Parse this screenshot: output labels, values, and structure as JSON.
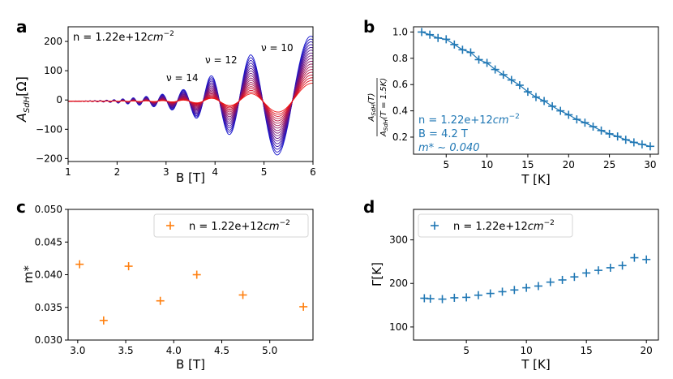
{
  "chart_data": [
    {
      "panel": "a",
      "type": "line",
      "title": "",
      "xlabel": "B [T]",
      "ylabel_main": "A",
      "ylabel_sub": "SdH",
      "ylabel_unit": "[Ω]",
      "xlim": [
        1,
        6
      ],
      "ylim": [
        -210,
        250
      ],
      "xticks": [
        "1",
        "2",
        "3",
        "4",
        "5",
        "6"
      ],
      "yticks": [
        "−200",
        "−100",
        "0",
        "100",
        "200"
      ],
      "ytick_values": [
        -200,
        -100,
        0,
        100,
        200
      ],
      "xtick_values": [
        1,
        2,
        3,
        4,
        5,
        6
      ],
      "legend_text_main": "n = 1.22e+12",
      "legend_text_unit": "cm",
      "legend_text_exp": "−2",
      "annotations": [
        {
          "text": "ν = 14",
          "x": 3.3,
          "y": 50
        },
        {
          "text": "ν = 12",
          "x": 3.8,
          "y": 95
        },
        {
          "text": "ν = 10",
          "x": 5.0,
          "y": 130
        }
      ],
      "num_curves": 18,
      "curve_color_cold": "#1414cc",
      "curve_color_hot": "#ee1111",
      "series_peaks": {
        "B": [
          1.8,
          2.1,
          2.45,
          2.85,
          3.3,
          3.85,
          4.72,
          6.0
        ],
        "max_amplitude": [
          4,
          8,
          14,
          22,
          37,
          82,
          158,
          225
        ]
      }
    },
    {
      "panel": "b",
      "type": "scatter",
      "xlabel": "T [K]",
      "ylabel": "A_SdH(T) / A_SdH(T = 1.5K)",
      "xlim": [
        1,
        31
      ],
      "ylim": [
        0.07,
        1.04
      ],
      "xticks": [
        "5",
        "10",
        "15",
        "20",
        "25",
        "30"
      ],
      "xtick_values": [
        5,
        10,
        15,
        20,
        25,
        30
      ],
      "yticks": [
        "0.2",
        "0.4",
        "0.6",
        "0.8",
        "1.0"
      ],
      "ytick_values": [
        0.2,
        0.4,
        0.6,
        0.8,
        1.0
      ],
      "color": "#1f77b4",
      "fit_color": "#1f77b4",
      "x": [
        2,
        3,
        4,
        5,
        6,
        7,
        8,
        9,
        10,
        11,
        12,
        13,
        14,
        15,
        16,
        17,
        18,
        19,
        20,
        21,
        22,
        23,
        24,
        25,
        26,
        27,
        28,
        29,
        30
      ],
      "y": [
        1.0,
        0.98,
        0.955,
        0.945,
        0.905,
        0.865,
        0.845,
        0.79,
        0.765,
        0.715,
        0.675,
        0.635,
        0.595,
        0.545,
        0.505,
        0.475,
        0.435,
        0.4,
        0.37,
        0.335,
        0.31,
        0.28,
        0.25,
        0.225,
        0.205,
        0.18,
        0.16,
        0.145,
        0.13
      ],
      "text_lines": [
        "n = 1.22e+12",
        "B = 4.2 T",
        "m* ∼ 0.040"
      ],
      "text_unit": "cm",
      "text_exp": "−2"
    },
    {
      "panel": "c",
      "type": "scatter",
      "xlabel": "B [T]",
      "ylabel": "m*",
      "xlim": [
        2.9,
        5.45
      ],
      "ylim": [
        0.03,
        0.05
      ],
      "xticks": [
        "3.0",
        "3.5",
        "4.0",
        "4.5",
        "5.0"
      ],
      "xtick_values": [
        3.0,
        3.5,
        4.0,
        4.5,
        5.0
      ],
      "yticks": [
        "0.030",
        "0.035",
        "0.040",
        "0.045",
        "0.050"
      ],
      "ytick_values": [
        0.03,
        0.035,
        0.04,
        0.045,
        0.05
      ],
      "color": "#ff7f0e",
      "x": [
        3.02,
        3.27,
        3.53,
        3.86,
        4.24,
        4.72,
        5.35
      ],
      "y": [
        0.0416,
        0.033,
        0.0413,
        0.036,
        0.04,
        0.0369,
        0.0351
      ],
      "legend": "n = 1.22e+12",
      "legend_unit": "cm",
      "legend_exp": "−2",
      "legend_position": "upper-right"
    },
    {
      "panel": "d",
      "type": "scatter",
      "xlabel": "T [K]",
      "ylabel": "Γ[K]",
      "xlim": [
        0.6,
        21
      ],
      "ylim": [
        70,
        370
      ],
      "xticks": [
        "5",
        "10",
        "15",
        "20"
      ],
      "xtick_values": [
        5,
        10,
        15,
        20
      ],
      "yticks": [
        "100",
        "200",
        "300"
      ],
      "ytick_values": [
        100,
        200,
        300
      ],
      "color": "#1f77b4",
      "x": [
        1.5,
        2,
        3,
        4,
        5,
        6,
        7,
        8,
        9,
        10,
        11,
        12,
        13,
        14,
        15,
        16,
        17,
        18,
        19,
        20
      ],
      "y": [
        166,
        165,
        164,
        167,
        168,
        173,
        177,
        181,
        185,
        190,
        194,
        203,
        208,
        215,
        224,
        230,
        236,
        241,
        259,
        255
      ],
      "legend": "n = 1.22e+12",
      "legend_unit": "cm",
      "legend_exp": "−2",
      "legend_position": "upper-left"
    }
  ],
  "panel_labels": [
    "a",
    "b",
    "c",
    "d"
  ]
}
